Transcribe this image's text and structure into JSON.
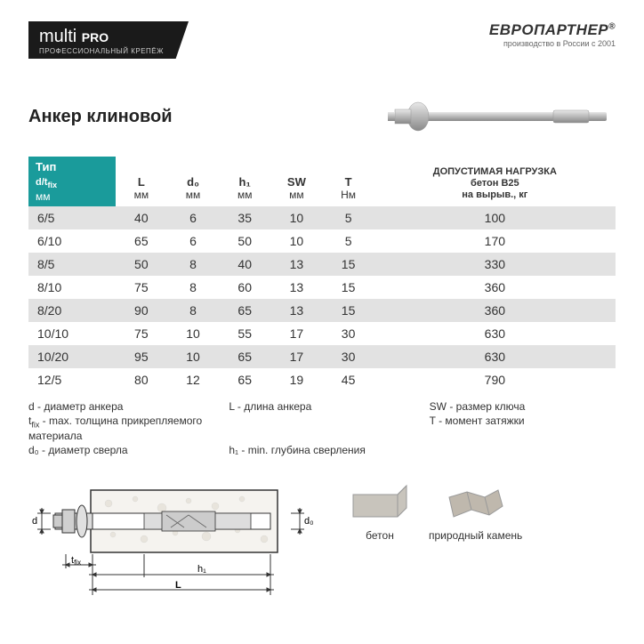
{
  "brand_left": {
    "name": "multi",
    "suffix": "PRO",
    "tagline": "ПРОФЕССИОНАЛЬНЫЙ КРЕПЁЖ"
  },
  "brand_right": {
    "name": "ЕВРОПАРТНЕР",
    "reg": "®",
    "tagline": "производство в России с 2001"
  },
  "title": "Анкер клиновой",
  "table": {
    "headers": [
      {
        "label": "Тип",
        "sub": "d/t_fix",
        "unit": "мм"
      },
      {
        "label": "L",
        "unit": "мм"
      },
      {
        "label": "d₀",
        "unit": "мм"
      },
      {
        "label": "h₁",
        "unit": "мм"
      },
      {
        "label": "SW",
        "unit": "мм"
      },
      {
        "label": "T",
        "unit": "Нм"
      },
      {
        "label": "ДОПУСТИМАЯ НАГРУЗКА",
        "sub": "бетон B25",
        "unit": "на вырыв., кг"
      }
    ],
    "rows": [
      [
        "6/5",
        "40",
        "6",
        "35",
        "10",
        "5",
        "100"
      ],
      [
        "6/10",
        "65",
        "6",
        "50",
        "10",
        "5",
        "170"
      ],
      [
        "8/5",
        "50",
        "8",
        "40",
        "13",
        "15",
        "330"
      ],
      [
        "8/10",
        "75",
        "8",
        "60",
        "13",
        "15",
        "360"
      ],
      [
        "8/20",
        "90",
        "8",
        "65",
        "13",
        "15",
        "360"
      ],
      [
        "10/10",
        "75",
        "10",
        "55",
        "17",
        "30",
        "630"
      ],
      [
        "10/20",
        "95",
        "10",
        "65",
        "17",
        "30",
        "630"
      ],
      [
        "12/5",
        "80",
        "12",
        "65",
        "19",
        "45",
        "790"
      ]
    ]
  },
  "legend": [
    "d - диаметр анкера",
    "L - длина анкера",
    "SW - размер ключа",
    "t_fix - max. толщина прикрепляемого материала",
    "T - момент затяжки",
    "d₀ - диаметр сверла",
    "h₁ - min. глубина сверления"
  ],
  "diagram_labels": {
    "d": "d",
    "tfix": "t_fix",
    "h1": "h₁",
    "L": "L",
    "d0": "d₀"
  },
  "materials": [
    {
      "label": "бетон",
      "fill": "#c8c4bc"
    },
    {
      "label": "природный камень",
      "fill": "#bfb8ad"
    }
  ],
  "colors": {
    "header_bg": "#1a1a1a",
    "teal": "#1a9b9b",
    "row_odd": "#e2e2e2",
    "row_even": "#ffffff",
    "text": "#333333",
    "metal_light": "#d8d8d8",
    "metal_dark": "#888888"
  }
}
